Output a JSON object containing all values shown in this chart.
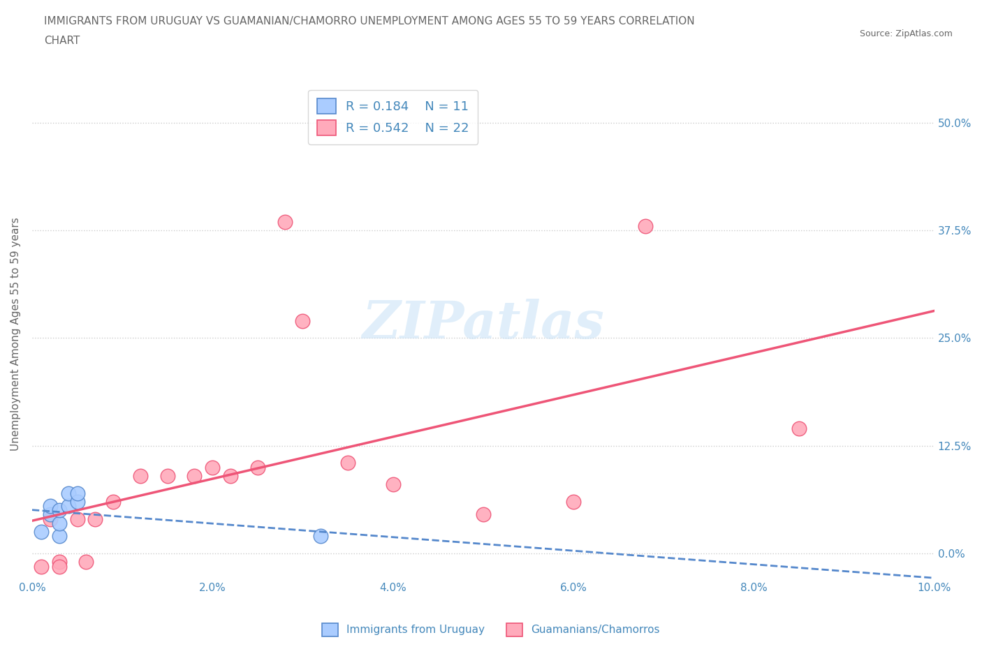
{
  "title_line1": "IMMIGRANTS FROM URUGUAY VS GUAMANIAN/CHAMORRO UNEMPLOYMENT AMONG AGES 55 TO 59 YEARS CORRELATION",
  "title_line2": "CHART",
  "source": "Source: ZipAtlas.com",
  "ylabel": "Unemployment Among Ages 55 to 59 years",
  "xlim": [
    0.0,
    0.1
  ],
  "ylim": [
    -0.03,
    0.54
  ],
  "yticks": [
    0.0,
    0.125,
    0.25,
    0.375,
    0.5
  ],
  "ytick_labels": [
    "0.0%",
    "12.5%",
    "25.0%",
    "37.5%",
    "50.0%"
  ],
  "xticks": [
    0.0,
    0.02,
    0.04,
    0.06,
    0.08,
    0.1
  ],
  "xtick_labels": [
    "0.0%",
    "2.0%",
    "4.0%",
    "6.0%",
    "8.0%",
    "10.0%"
  ],
  "watermark": "ZIPatlas",
  "legend_r1": "R = 0.184",
  "legend_n1": "N = 11",
  "legend_r2": "R = 0.542",
  "legend_n2": "N = 22",
  "color_uruguay": "#aaccff",
  "color_guam": "#ffaabb",
  "line_color_uruguay": "#5588cc",
  "line_color_guam": "#ee5577",
  "background_color": "#ffffff",
  "grid_color": "#cccccc",
  "axis_label_color": "#4488bb",
  "title_color": "#666666",
  "uruguay_x": [
    0.001,
    0.002,
    0.002,
    0.003,
    0.003,
    0.003,
    0.004,
    0.004,
    0.005,
    0.005,
    0.032
  ],
  "uruguay_y": [
    0.025,
    0.045,
    0.055,
    0.02,
    0.035,
    0.05,
    0.055,
    0.07,
    0.06,
    0.07,
    0.02
  ],
  "guam_x": [
    0.001,
    0.002,
    0.003,
    0.003,
    0.005,
    0.006,
    0.007,
    0.009,
    0.012,
    0.015,
    0.018,
    0.02,
    0.022,
    0.025,
    0.028,
    0.03,
    0.035,
    0.04,
    0.05,
    0.06,
    0.068,
    0.085
  ],
  "guam_y": [
    -0.015,
    0.04,
    -0.01,
    -0.015,
    0.04,
    -0.01,
    0.04,
    0.06,
    0.09,
    0.09,
    0.09,
    0.1,
    0.09,
    0.1,
    0.385,
    0.27,
    0.105,
    0.08,
    0.045,
    0.06,
    0.38,
    0.145
  ]
}
